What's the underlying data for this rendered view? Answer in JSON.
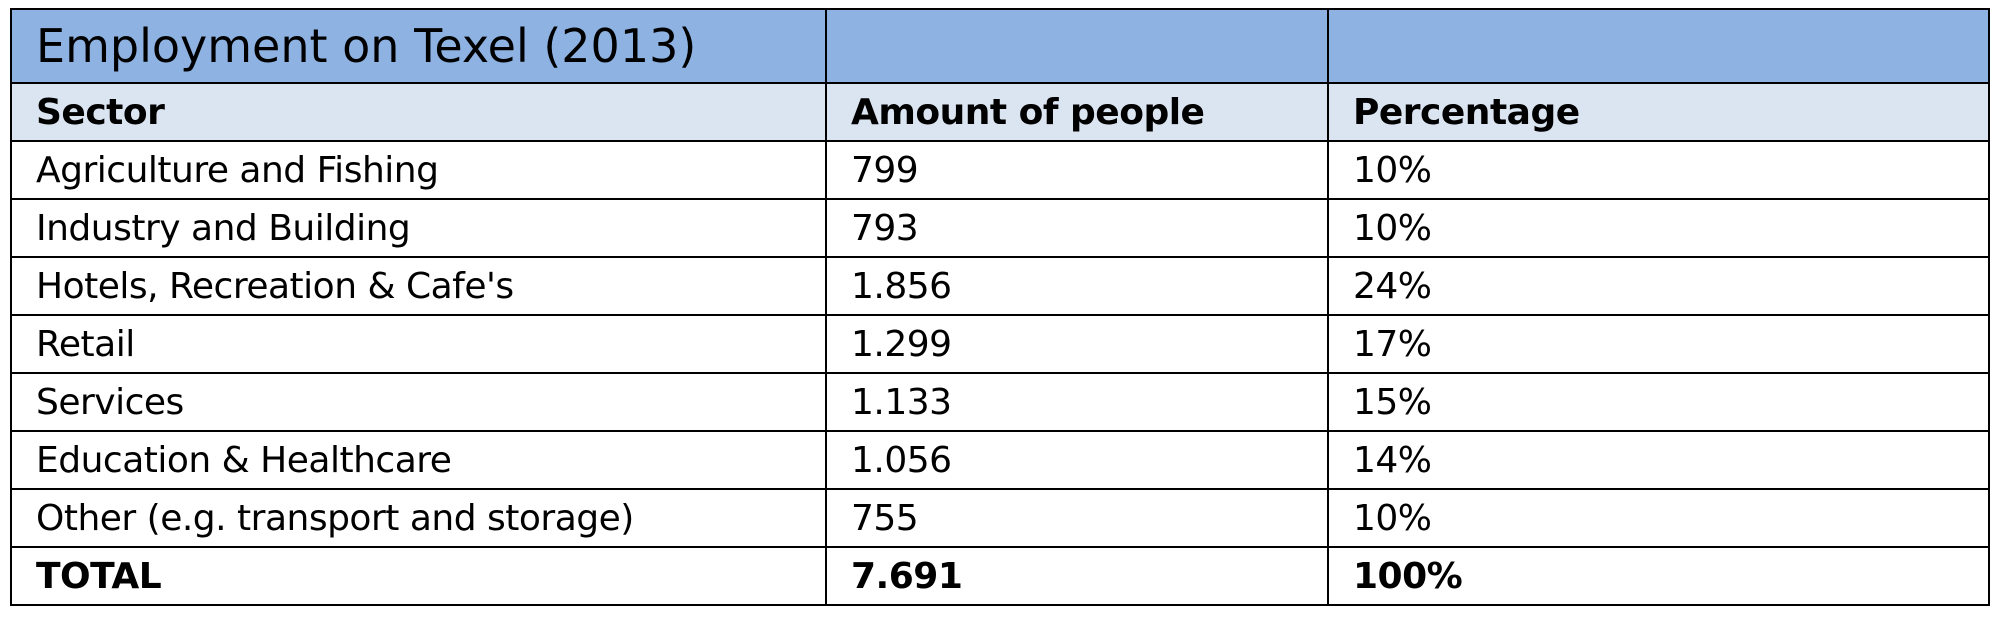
{
  "table": {
    "title": "Employment on Texel (2013)",
    "columns": [
      "Sector",
      "Amount of people",
      "Percentage"
    ],
    "rows": [
      [
        "Agriculture and Fishing",
        "799",
        "10%"
      ],
      [
        "Industry and Building",
        "793",
        "10%"
      ],
      [
        "Hotels, Recreation & Cafe's",
        "1.856",
        "24%"
      ],
      [
        "Retail",
        "1.299",
        "17%"
      ],
      [
        "Services",
        "1.133",
        "15%"
      ],
      [
        "Education & Healthcare",
        "1.056",
        "14%"
      ],
      [
        "Other (e.g.  transport and storage)",
        "755",
        "10%"
      ]
    ],
    "total": [
      "TOTAL",
      "7.691",
      "100%"
    ]
  },
  "colors": {
    "title_band": "#8eb3e3",
    "header_band": "#dbe5f1",
    "border": "#000000"
  }
}
